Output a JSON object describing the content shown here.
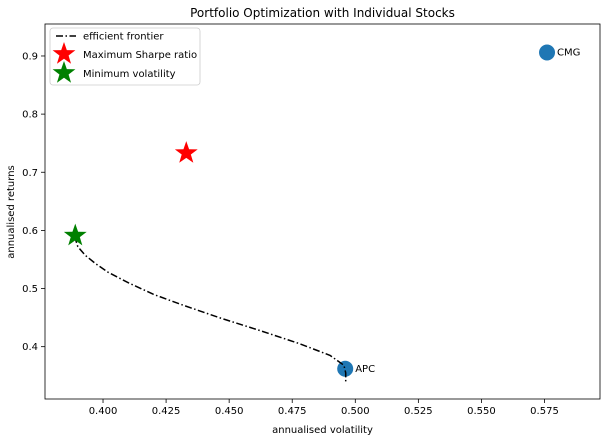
{
  "chart_data": {
    "type": "scatter",
    "title": "Portfolio Optimization with Individual Stocks",
    "xlabel": "annualised volatility",
    "ylabel": "annualised returns",
    "xlim": [
      0.377,
      0.597
    ],
    "ylim": [
      0.31,
      0.955
    ],
    "xticks": [
      0.4,
      0.425,
      0.45,
      0.475,
      0.5,
      0.525,
      0.55,
      0.575
    ],
    "xtick_labels": [
      "0.400",
      "0.425",
      "0.450",
      "0.475",
      "0.500",
      "0.525",
      "0.550",
      "0.575"
    ],
    "yticks": [
      0.4,
      0.5,
      0.6,
      0.7,
      0.8,
      0.9
    ],
    "ytick_labels": [
      "0.4",
      "0.5",
      "0.6",
      "0.7",
      "0.8",
      "0.9"
    ],
    "grid": false,
    "legend_position": "top-left",
    "stocks": [
      {
        "name": "CMG",
        "x": 0.576,
        "y": 0.906
      },
      {
        "name": "APC",
        "x": 0.496,
        "y": 0.362
      }
    ],
    "efficient_frontier": {
      "name": "efficient frontier",
      "x": [
        0.3887,
        0.39,
        0.393,
        0.397,
        0.402,
        0.41,
        0.42,
        0.432,
        0.446,
        0.462,
        0.478,
        0.49,
        0.4955,
        0.4962,
        0.4962
      ],
      "y": [
        0.59,
        0.572,
        0.557,
        0.543,
        0.528,
        0.51,
        0.49,
        0.471,
        0.45,
        0.428,
        0.405,
        0.385,
        0.368,
        0.355,
        0.34
      ]
    },
    "max_sharpe": {
      "name": "Maximum Sharpe ratio",
      "x": 0.433,
      "y": 0.733
    },
    "min_volatility": {
      "name": "Minimum volatility",
      "x": 0.389,
      "y": 0.591
    },
    "colors": {
      "stock_marker": "#1f77b4",
      "max_sharpe": "#ff0000",
      "min_volatility": "#008000",
      "frontier": "#000000"
    }
  }
}
